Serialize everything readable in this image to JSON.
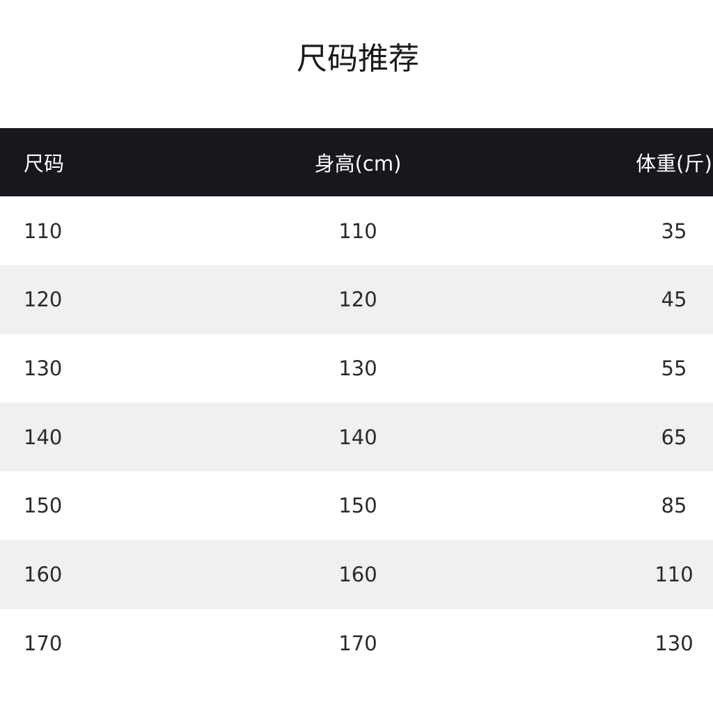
{
  "title": "尺码推荐",
  "table": {
    "headers": [
      "尺码",
      "身高(cm)",
      "体重(斤)"
    ],
    "rows": [
      [
        "110",
        "110",
        "35"
      ],
      [
        "120",
        "120",
        "45"
      ],
      [
        "130",
        "130",
        "55"
      ],
      [
        "140",
        "140",
        "65"
      ],
      [
        "150",
        "150",
        "85"
      ],
      [
        "160",
        "160",
        "110"
      ],
      [
        "170",
        "170",
        "130"
      ]
    ]
  },
  "colors": {
    "header_bg": "#17171d",
    "header_text": "#ffffff",
    "stripe": "#f0f0f0"
  }
}
